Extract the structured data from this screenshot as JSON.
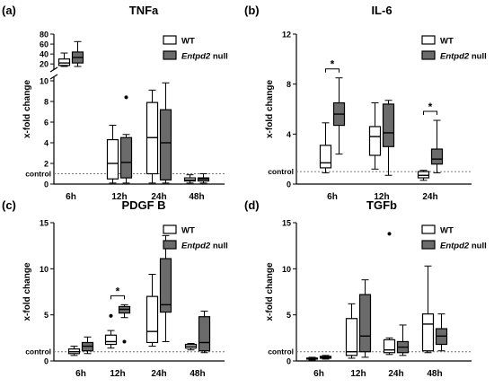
{
  "colors": {
    "wt_fill": "#ffffff",
    "null_fill": "#6b6b6b",
    "axis": "#000000",
    "control_line": "#777777"
  },
  "legend": [
    {
      "label": "WT",
      "label_italic": "",
      "fill": "#ffffff"
    },
    {
      "label": " null",
      "label_italic": "Entpd2",
      "fill": "#6b6b6b"
    }
  ],
  "chart_data": [
    {
      "panel_label": "(a)",
      "title": "TNFa",
      "type": "box",
      "ylabel": "x-fold change",
      "control_label": "control",
      "categories": [
        "6h",
        "12h",
        "24h",
        "48h"
      ],
      "broken_axis": true,
      "ylim_lower": [
        0,
        10
      ],
      "yticks_lower": [
        0,
        2,
        4,
        6,
        8,
        10
      ],
      "ylim_upper": [
        0,
        80
      ],
      "yticks_upper": [
        20,
        40,
        60,
        80
      ],
      "control_value": 1,
      "series": [
        {
          "name": "WT",
          "boxes": [
            {
              "min": 15,
              "q1": 17,
              "median": 22,
              "q3": 30,
              "max": 42
            },
            {
              "min": 0.1,
              "q1": 0.5,
              "median": 2.0,
              "q3": 4.3,
              "max": 5.7,
              "outliers": []
            },
            {
              "min": 0.1,
              "q1": 1.0,
              "median": 4.5,
              "q3": 7.9,
              "max": 9.1
            },
            {
              "min": 0.1,
              "q1": 0.3,
              "median": 0.4,
              "q3": 0.6,
              "max": 0.9
            }
          ]
        },
        {
          "name": "Entpd2 null",
          "boxes": [
            {
              "min": 15,
              "q1": 22,
              "median": 33,
              "q3": 44,
              "max": 65
            },
            {
              "min": 0.1,
              "q1": 0.6,
              "median": 2.1,
              "q3": 4.5,
              "max": 4.8,
              "outliers": [
                8.4
              ]
            },
            {
              "min": 0.1,
              "q1": 0.4,
              "median": 4.0,
              "q3": 7.2,
              "max": 9.8
            },
            {
              "min": 0.1,
              "q1": 0.3,
              "median": 0.5,
              "q3": 0.6,
              "max": 1.0
            }
          ]
        }
      ]
    },
    {
      "panel_label": "(b)",
      "title": "IL-6",
      "type": "box",
      "ylabel": "x-fold change",
      "control_label": "control",
      "categories": [
        "6h",
        "12h",
        "24h"
      ],
      "ylim": [
        0,
        12
      ],
      "yticks": [
        0,
        4,
        8,
        12
      ],
      "control_value": 1,
      "significance": [
        {
          "category": "6h",
          "label": "*"
        },
        {
          "category": "24h",
          "label": "*"
        }
      ],
      "series": [
        {
          "name": "WT",
          "boxes": [
            {
              "min": 0.9,
              "q1": 1.3,
              "median": 1.7,
              "q3": 3.1,
              "max": 4.9
            },
            {
              "min": 1.2,
              "q1": 2.3,
              "median": 3.8,
              "q3": 4.6,
              "max": 6.5
            },
            {
              "min": 0.3,
              "q1": 0.5,
              "median": 0.7,
              "q3": 1.0,
              "max": 1.1
            }
          ]
        },
        {
          "name": "Entpd2 null",
          "boxes": [
            {
              "min": 2.4,
              "q1": 4.7,
              "median": 5.6,
              "q3": 6.5,
              "max": 8.5
            },
            {
              "min": 0.7,
              "q1": 3.0,
              "median": 4.1,
              "q3": 6.4,
              "max": 6.7
            },
            {
              "min": 0.9,
              "q1": 1.6,
              "median": 2.0,
              "q3": 2.8,
              "max": 5.1
            }
          ]
        }
      ]
    },
    {
      "panel_label": "(c)",
      "title": "PDGF B",
      "type": "box",
      "ylabel": "x-fold change",
      "control_label": "control",
      "categories": [
        "6h",
        "12h",
        "24h",
        "48h"
      ],
      "ylim": [
        0,
        15
      ],
      "yticks": [
        0,
        5,
        10,
        15
      ],
      "control_value": 1,
      "significance": [
        {
          "category": "12h",
          "label": "*"
        }
      ],
      "series": [
        {
          "name": "WT",
          "boxes": [
            {
              "min": 0.6,
              "q1": 0.8,
              "median": 1.0,
              "q3": 1.3,
              "max": 1.6
            },
            {
              "min": 1.4,
              "q1": 1.8,
              "median": 2.1,
              "q3": 2.8,
              "max": 3.3,
              "outliers": [
                4.9
              ]
            },
            {
              "min": 1.6,
              "q1": 2.0,
              "median": 3.2,
              "q3": 7.0,
              "max": 9.4
            },
            {
              "min": 1.2,
              "q1": 1.4,
              "median": 1.6,
              "q3": 1.8,
              "max": 1.9
            }
          ]
        },
        {
          "name": "Entpd2 null",
          "boxes": [
            {
              "min": 0.8,
              "q1": 1.1,
              "median": 1.6,
              "q3": 2.0,
              "max": 2.6
            },
            {
              "min": 4.7,
              "q1": 5.2,
              "median": 5.6,
              "q3": 5.9,
              "max": 6.1,
              "outliers": [
                2.1
              ]
            },
            {
              "min": 2.1,
              "q1": 5.3,
              "median": 6.1,
              "q3": 11.1,
              "max": 13.6
            },
            {
              "min": 0.9,
              "q1": 1.1,
              "median": 2.0,
              "q3": 4.8,
              "max": 5.4
            }
          ]
        }
      ]
    },
    {
      "panel_label": "(d)",
      "title": "TGFb",
      "type": "box",
      "ylabel": "x-fold change",
      "control_label": "control",
      "categories": [
        "6h",
        "12h",
        "24h",
        "48h"
      ],
      "ylim": [
        0,
        15
      ],
      "yticks": [
        0,
        5,
        10,
        15
      ],
      "control_value": 1,
      "series": [
        {
          "name": "WT",
          "boxes": [
            {
              "min": 0.1,
              "q1": 0.2,
              "median": 0.3,
              "q3": 0.3,
              "max": 0.4
            },
            {
              "min": 0.3,
              "q1": 0.6,
              "median": 1.0,
              "q3": 4.6,
              "max": 6.2
            },
            {
              "min": 0.7,
              "q1": 0.9,
              "median": 1.2,
              "q3": 2.3,
              "max": 2.5,
              "outliers": [
                13.8
              ]
            },
            {
              "min": 0.9,
              "q1": 1.1,
              "median": 4.0,
              "q3": 5.1,
              "max": 10.3
            }
          ]
        },
        {
          "name": "Entpd2 null",
          "boxes": [
            {
              "min": 0.2,
              "q1": 0.3,
              "median": 0.4,
              "q3": 0.5,
              "max": 0.6
            },
            {
              "min": 0.4,
              "q1": 1.0,
              "median": 2.7,
              "q3": 7.2,
              "max": 8.8
            },
            {
              "min": 0.6,
              "q1": 0.9,
              "median": 1.5,
              "q3": 2.1,
              "max": 3.9
            },
            {
              "min": 1.1,
              "q1": 1.8,
              "median": 2.7,
              "q3": 3.5,
              "max": 5.1
            }
          ]
        }
      ]
    }
  ]
}
